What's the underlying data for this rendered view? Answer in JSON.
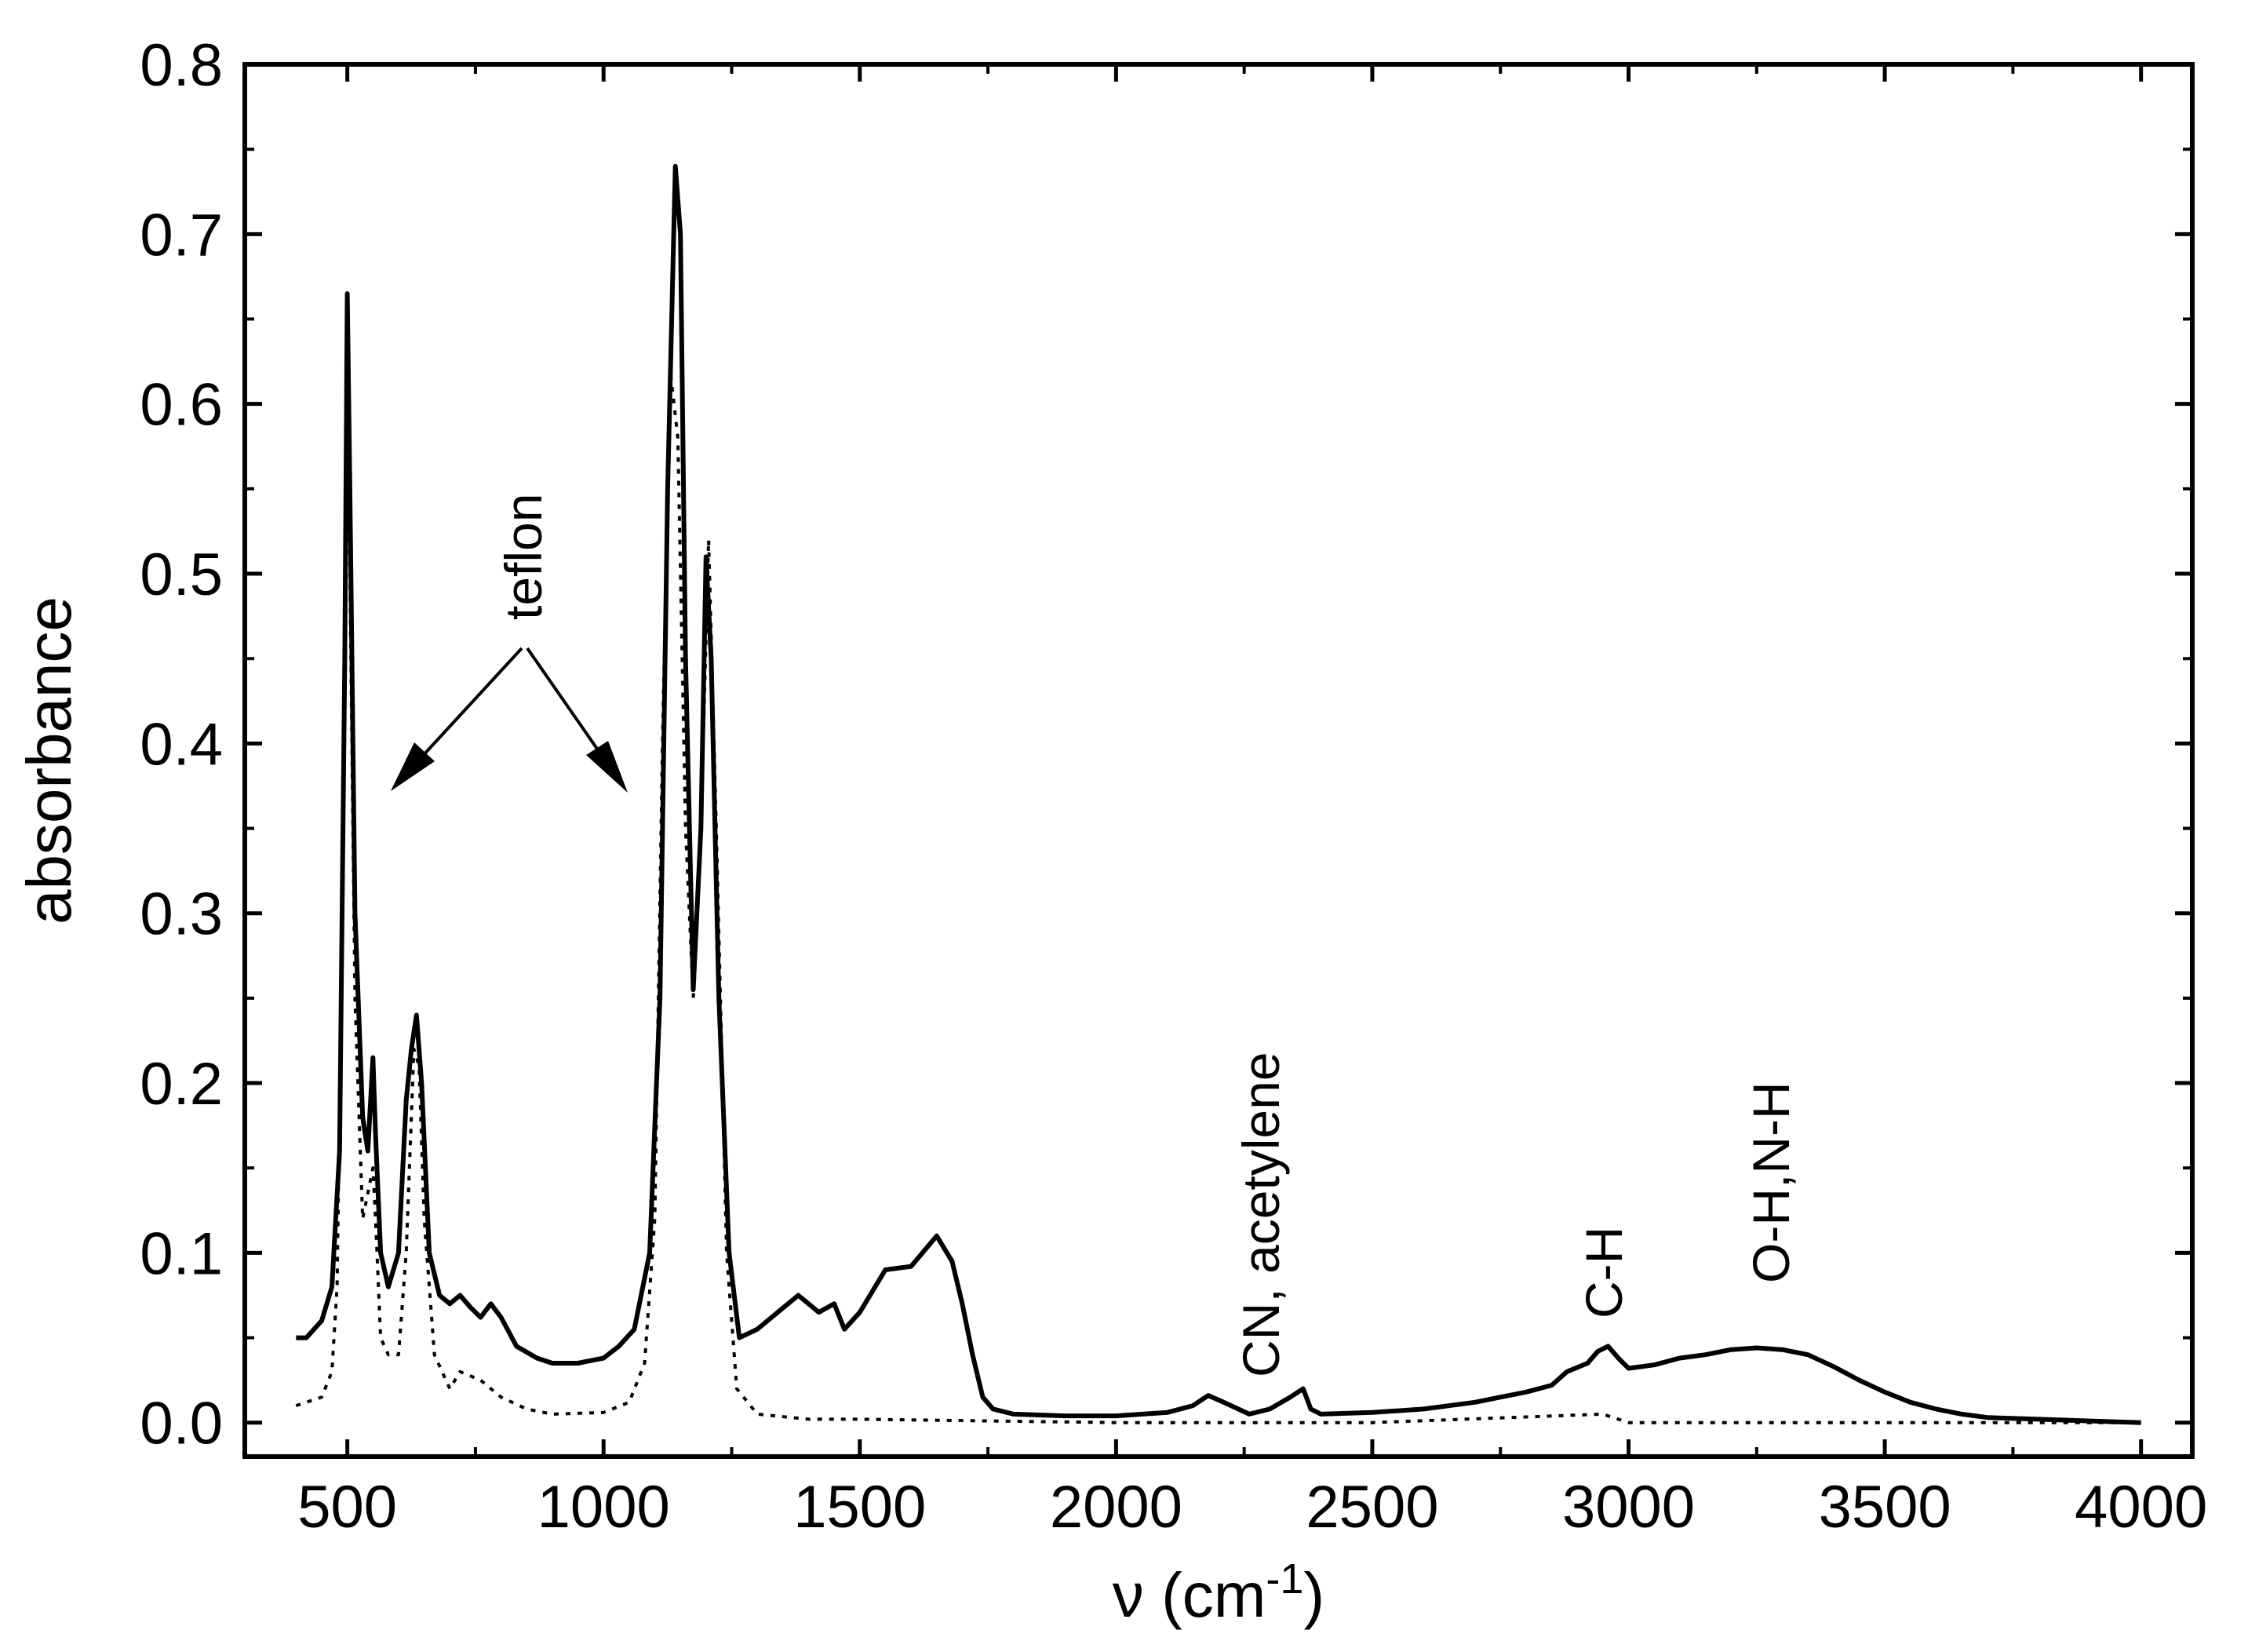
{
  "chart_data": {
    "type": "line",
    "xlabel": "ν (cm",
    "xlabel_sup": "-1",
    "xlabel_close": ")",
    "ylabel": "absorbance",
    "xlim": [
      300,
      4100
    ],
    "ylim": [
      -0.02,
      0.8
    ],
    "x_ticks": [
      500,
      1000,
      1500,
      2000,
      2500,
      3000,
      3500,
      4000
    ],
    "x_tick_labels": [
      "500",
      "1000",
      "1500",
      "2000",
      "2500",
      "3000",
      "3500",
      "4000"
    ],
    "y_ticks": [
      0.0,
      0.1,
      0.2,
      0.3,
      0.4,
      0.5,
      0.6,
      0.7,
      0.8
    ],
    "y_tick_labels": [
      "0.0",
      "0.1",
      "0.2",
      "0.3",
      "0.4",
      "0.5",
      "0.6",
      "0.7",
      "0.8"
    ],
    "grid": false,
    "legend": "none",
    "series": [
      {
        "style": "solid",
        "color": "#000000",
        "points": [
          [
            400,
            0.05
          ],
          [
            420,
            0.05
          ],
          [
            450,
            0.06
          ],
          [
            470,
            0.08
          ],
          [
            485,
            0.16
          ],
          [
            495,
            0.45
          ],
          [
            500,
            0.665
          ],
          [
            505,
            0.55
          ],
          [
            515,
            0.3
          ],
          [
            530,
            0.18
          ],
          [
            540,
            0.16
          ],
          [
            550,
            0.215
          ],
          [
            555,
            0.17
          ],
          [
            565,
            0.1
          ],
          [
            580,
            0.08
          ],
          [
            600,
            0.1
          ],
          [
            615,
            0.19
          ],
          [
            625,
            0.22
          ],
          [
            635,
            0.24
          ],
          [
            645,
            0.2
          ],
          [
            660,
            0.1
          ],
          [
            680,
            0.075
          ],
          [
            700,
            0.07
          ],
          [
            720,
            0.075
          ],
          [
            740,
            0.068
          ],
          [
            760,
            0.062
          ],
          [
            780,
            0.07
          ],
          [
            800,
            0.062
          ],
          [
            830,
            0.045
          ],
          [
            870,
            0.038
          ],
          [
            900,
            0.035
          ],
          [
            950,
            0.035
          ],
          [
            1000,
            0.038
          ],
          [
            1030,
            0.045
          ],
          [
            1060,
            0.055
          ],
          [
            1090,
            0.1
          ],
          [
            1110,
            0.25
          ],
          [
            1125,
            0.55
          ],
          [
            1140,
            0.74
          ],
          [
            1150,
            0.7
          ],
          [
            1160,
            0.45
          ],
          [
            1175,
            0.255
          ],
          [
            1190,
            0.35
          ],
          [
            1200,
            0.51
          ],
          [
            1210,
            0.45
          ],
          [
            1225,
            0.25
          ],
          [
            1245,
            0.1
          ],
          [
            1265,
            0.05
          ],
          [
            1300,
            0.055
          ],
          [
            1340,
            0.065
          ],
          [
            1380,
            0.075
          ],
          [
            1420,
            0.065
          ],
          [
            1450,
            0.07
          ],
          [
            1470,
            0.055
          ],
          [
            1500,
            0.065
          ],
          [
            1550,
            0.09
          ],
          [
            1600,
            0.092
          ],
          [
            1650,
            0.11
          ],
          [
            1680,
            0.095
          ],
          [
            1700,
            0.07
          ],
          [
            1720,
            0.04
          ],
          [
            1740,
            0.015
          ],
          [
            1760,
            0.008
          ],
          [
            1800,
            0.005
          ],
          [
            1900,
            0.004
          ],
          [
            2000,
            0.004
          ],
          [
            2100,
            0.006
          ],
          [
            2150,
            0.01
          ],
          [
            2180,
            0.016
          ],
          [
            2210,
            0.012
          ],
          [
            2260,
            0.005
          ],
          [
            2300,
            0.008
          ],
          [
            2340,
            0.015
          ],
          [
            2365,
            0.02
          ],
          [
            2380,
            0.008
          ],
          [
            2400,
            0.005
          ],
          [
            2500,
            0.006
          ],
          [
            2600,
            0.008
          ],
          [
            2700,
            0.012
          ],
          [
            2800,
            0.018
          ],
          [
            2850,
            0.022
          ],
          [
            2880,
            0.03
          ],
          [
            2920,
            0.035
          ],
          [
            2940,
            0.042
          ],
          [
            2960,
            0.045
          ],
          [
            2980,
            0.038
          ],
          [
            3000,
            0.032
          ],
          [
            3050,
            0.034
          ],
          [
            3100,
            0.038
          ],
          [
            3150,
            0.04
          ],
          [
            3200,
            0.043
          ],
          [
            3250,
            0.044
          ],
          [
            3300,
            0.043
          ],
          [
            3350,
            0.04
          ],
          [
            3400,
            0.033
          ],
          [
            3450,
            0.025
          ],
          [
            3500,
            0.018
          ],
          [
            3550,
            0.012
          ],
          [
            3600,
            0.008
          ],
          [
            3650,
            0.005
          ],
          [
            3700,
            0.003
          ],
          [
            3800,
            0.002
          ],
          [
            3900,
            0.001
          ],
          [
            4000,
            0.0
          ]
        ]
      },
      {
        "style": "dotted",
        "color": "#000000",
        "points": [
          [
            400,
            0.01
          ],
          [
            450,
            0.015
          ],
          [
            470,
            0.03
          ],
          [
            480,
            0.08
          ],
          [
            490,
            0.3
          ],
          [
            500,
            0.62
          ],
          [
            505,
            0.5
          ],
          [
            515,
            0.25
          ],
          [
            530,
            0.12
          ],
          [
            550,
            0.15
          ],
          [
            555,
            0.12
          ],
          [
            565,
            0.05
          ],
          [
            580,
            0.04
          ],
          [
            600,
            0.04
          ],
          [
            615,
            0.1
          ],
          [
            630,
            0.22
          ],
          [
            640,
            0.21
          ],
          [
            650,
            0.12
          ],
          [
            670,
            0.04
          ],
          [
            700,
            0.02
          ],
          [
            720,
            0.03
          ],
          [
            760,
            0.025
          ],
          [
            800,
            0.015
          ],
          [
            850,
            0.008
          ],
          [
            900,
            0.005
          ],
          [
            1000,
            0.006
          ],
          [
            1050,
            0.012
          ],
          [
            1080,
            0.035
          ],
          [
            1100,
            0.12
          ],
          [
            1115,
            0.4
          ],
          [
            1130,
            0.62
          ],
          [
            1145,
            0.58
          ],
          [
            1160,
            0.35
          ],
          [
            1175,
            0.25
          ],
          [
            1190,
            0.35
          ],
          [
            1205,
            0.52
          ],
          [
            1220,
            0.35
          ],
          [
            1240,
            0.1
          ],
          [
            1260,
            0.02
          ],
          [
            1300,
            0.005
          ],
          [
            1400,
            0.002
          ],
          [
            1500,
            0.002
          ],
          [
            2000,
            0.0
          ],
          [
            2500,
            0.0
          ],
          [
            2950,
            0.005
          ],
          [
            3000,
            0.0
          ],
          [
            3500,
            0.0
          ],
          [
            4000,
            0.0
          ]
        ]
      }
    ],
    "annotations": [
      {
        "text": "teflon",
        "x": 900,
        "y": 0.52
      },
      {
        "text": "CN, acetylene",
        "x": 2290,
        "y": 0.03
      },
      {
        "text": "C-H",
        "x": 2960,
        "y": 0.06
      },
      {
        "text": "O-H,N-H",
        "x": 3270,
        "y": 0.08
      }
    ]
  }
}
